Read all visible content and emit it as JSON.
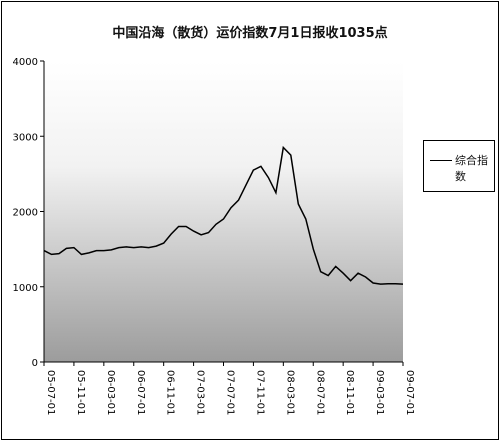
{
  "chart_data": {
    "type": "line",
    "title": "中国沿海（散货）运价指数7月1日报收1035点",
    "ylim": [
      0,
      4000
    ],
    "yticks": [
      "0",
      "1000",
      "2000",
      "3000",
      "4000"
    ],
    "xticks": [
      "05-07-01",
      "05-11-01",
      "06-03-01",
      "06-07-01",
      "06-11-01",
      "07-03-01",
      "07-07-01",
      "07-11-01",
      "08-03-01",
      "08-07-01",
      "08-11-01",
      "09-03-01",
      "09-07-01"
    ],
    "legend": "top-right",
    "grid": false,
    "series": [
      {
        "name": "综合指数",
        "x": [
          "05-07-01",
          "05-08-01",
          "05-09-01",
          "05-10-01",
          "05-11-01",
          "05-12-01",
          "06-01-01",
          "06-02-01",
          "06-03-01",
          "06-04-01",
          "06-05-01",
          "06-06-01",
          "06-07-01",
          "06-08-01",
          "06-09-01",
          "06-10-01",
          "06-11-01",
          "06-12-01",
          "07-01-01",
          "07-02-01",
          "07-03-01",
          "07-04-01",
          "07-05-01",
          "07-06-01",
          "07-07-01",
          "07-08-01",
          "07-09-01",
          "07-10-01",
          "07-11-01",
          "07-12-01",
          "08-01-01",
          "08-02-01",
          "08-03-01",
          "08-04-01",
          "08-05-01",
          "08-06-01",
          "08-07-01",
          "08-08-01",
          "08-09-01",
          "08-10-01",
          "08-11-01",
          "08-12-01",
          "09-01-01",
          "09-02-01",
          "09-03-01",
          "09-04-01",
          "09-05-01",
          "09-06-01",
          "09-07-01"
        ],
        "values": [
          1480,
          1430,
          1440,
          1510,
          1520,
          1430,
          1450,
          1480,
          1480,
          1490,
          1520,
          1530,
          1520,
          1530,
          1520,
          1540,
          1580,
          1700,
          1800,
          1800,
          1740,
          1690,
          1720,
          1830,
          1900,
          2050,
          2150,
          2350,
          2550,
          2600,
          2450,
          2250,
          2850,
          2750,
          2100,
          1900,
          1500,
          1200,
          1150,
          1270,
          1180,
          1080,
          1180,
          1130,
          1050,
          1035,
          1040,
          1040,
          1035
        ]
      }
    ]
  }
}
